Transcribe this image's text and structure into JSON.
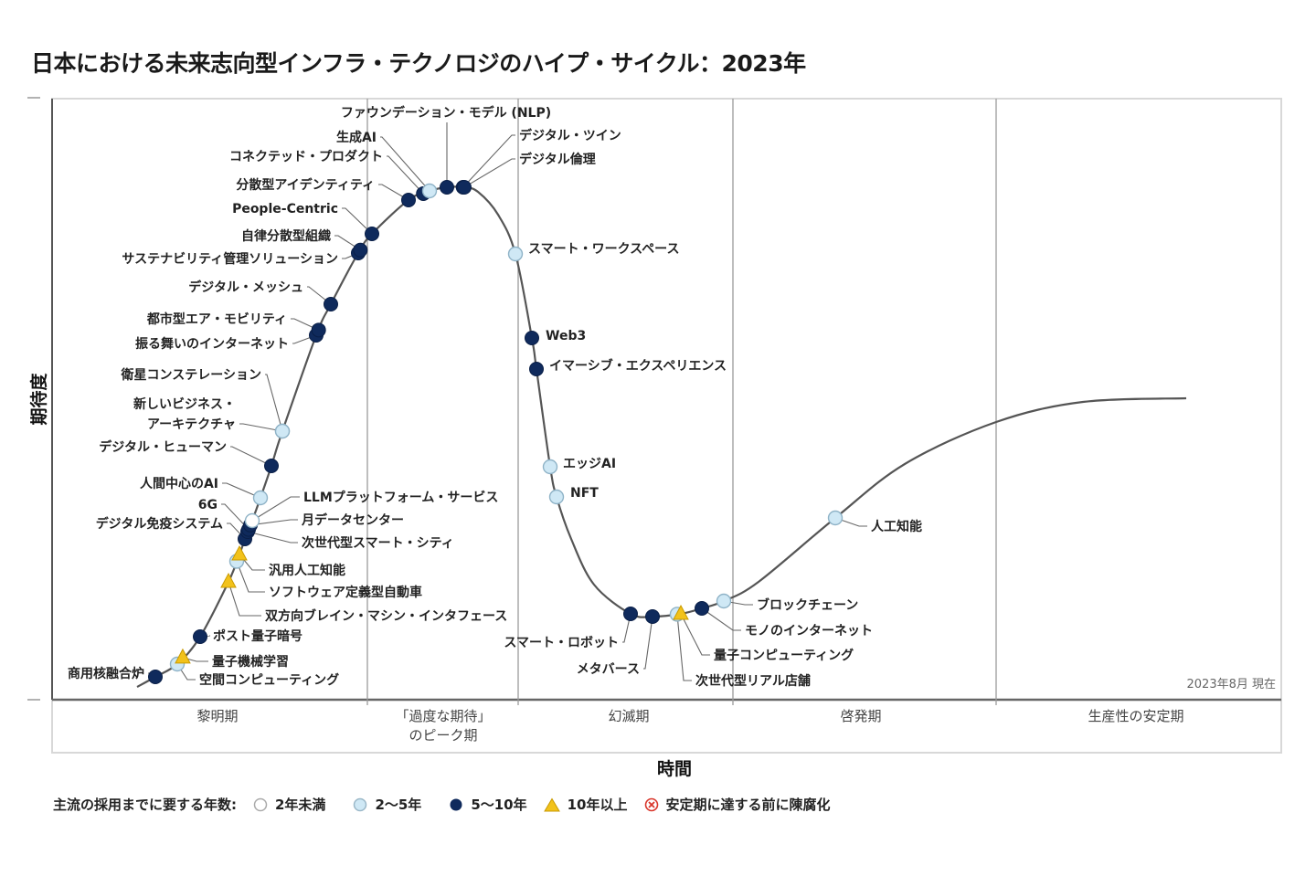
{
  "title": "日本における未来志向型インフラ・テクノロジのハイプ・サイクル：2023年",
  "chart_data": {
    "type": "scatter",
    "subtype": "hype-cycle",
    "title": "日本における未来志向型インフラ・テクノロジのハイプ・サイクル：2023年",
    "xlabel": "時間",
    "ylabel": "期待度",
    "as_of": "2023年8月 現在",
    "phases": [
      {
        "name": "黎明期",
        "lines": [
          "黎明期"
        ]
      },
      {
        "name": "「過度な期待」のピーク期",
        "lines": [
          "「過度な期待」",
          "のピーク期"
        ]
      },
      {
        "name": "幻滅期",
        "lines": [
          "幻滅期"
        ]
      },
      {
        "name": "啓発期",
        "lines": [
          "啓発期"
        ]
      },
      {
        "name": "生産性の安定期",
        "lines": [
          "生産性の安定期"
        ]
      }
    ],
    "legend": {
      "title": "主流の採用までに要する年数:",
      "entries": [
        {
          "key": "lt2",
          "label": "2年未満",
          "marker": "circle",
          "color": "#ffffff"
        },
        {
          "key": "2to5",
          "label": "2〜5年",
          "marker": "circle",
          "color": "#cfe8f5"
        },
        {
          "key": "5to10",
          "label": "5〜10年",
          "marker": "circle",
          "color": "#0f2a5c"
        },
        {
          "key": "gt10",
          "label": "10年以上",
          "marker": "triangle",
          "color": "#f2c21b"
        },
        {
          "key": "obsolete",
          "label": "安定期に達する前に陳腐化",
          "marker": "cross-circle",
          "color": "#d9362b"
        }
      ]
    },
    "technologies": [
      {
        "name": "商用核融合炉",
        "t": 3.0,
        "category": "5to10"
      },
      {
        "name": "空間コンピューティング",
        "t": 4.4,
        "category": "2to5"
      },
      {
        "name": "量子機械学習",
        "t": 4.9,
        "category": "gt10"
      },
      {
        "name": "ポスト量子暗号",
        "t": 6.5,
        "category": "5to10"
      },
      {
        "name": "双方向ブレイン・マシン・インタフェース",
        "t": 8.7,
        "category": "gt10"
      },
      {
        "name": "ソフトウェア定義型自動車",
        "t": 9.6,
        "category": "2to5"
      },
      {
        "name": "汎用人工知能",
        "t": 9.9,
        "category": "gt10"
      },
      {
        "name": "デジタル免疫システム",
        "t": 11.2,
        "category": "5to10"
      },
      {
        "name": "次世代型スマート・シティ",
        "t": 11.6,
        "category": "5to10"
      },
      {
        "name": "6G",
        "t": 11.7,
        "category": "5to10"
      },
      {
        "name": "月データセンター",
        "t": 11.9,
        "category": "5to10"
      },
      {
        "name": "LLMプラットフォーム・サービス",
        "t": 12.1,
        "category": "lt2"
      },
      {
        "name": "人間中心のAI",
        "t": 12.9,
        "category": "2to5"
      },
      {
        "name": "デジタル・ヒューマン",
        "t": 13.9,
        "category": "5to10"
      },
      {
        "name": "新しいビジネス・アーキテクチャ",
        "t": 15.0,
        "category": "2to5"
      },
      {
        "name": "衛星コンステレーション",
        "t": 15.0,
        "category": "2to5"
      },
      {
        "name": "振る舞いのインターネット",
        "t": 18.5,
        "category": "5to10"
      },
      {
        "name": "都市型エア・モビリティ",
        "t": 18.7,
        "category": "5to10"
      },
      {
        "name": "デジタル・メッシュ",
        "t": 19.7,
        "category": "5to10"
      },
      {
        "name": "サステナビリティ管理ソリューション",
        "t": 22.4,
        "category": "5to10"
      },
      {
        "name": "自律分散型組織",
        "t": 22.6,
        "category": "5to10"
      },
      {
        "name": "People-Centric",
        "t": 23.7,
        "category": "5to10"
      },
      {
        "name": "分散型アイデンティティ",
        "t": 26.9,
        "category": "5to10"
      },
      {
        "name": "コネクテッド・プロダクト",
        "t": 28.1,
        "category": "5to10"
      },
      {
        "name": "生成AI",
        "t": 28.6,
        "category": "2to5"
      },
      {
        "name": "ファウンデーション・モデル (NLP)",
        "t": 30.1,
        "category": "5to10"
      },
      {
        "name": "デジタル・ツイン",
        "t": 31.5,
        "category": "5to10"
      },
      {
        "name": "デジタル倫理",
        "t": 31.6,
        "category": "5to10"
      },
      {
        "name": "スマート・ワークスペース",
        "t": 35.9,
        "category": "2to5"
      },
      {
        "name": "Web3",
        "t": 37.2,
        "category": "5to10"
      },
      {
        "name": "イマーシブ・エクスペリエンス",
        "t": 37.6,
        "category": "5to10"
      },
      {
        "name": "エッジAI",
        "t": 38.7,
        "category": "2to5"
      },
      {
        "name": "NFT",
        "t": 39.3,
        "category": "2to5"
      },
      {
        "name": "スマート・ロボット",
        "t": 49.0,
        "category": "5to10"
      },
      {
        "name": "メタバース",
        "t": 50.9,
        "category": "5to10"
      },
      {
        "name": "次世代型リアル店舗",
        "t": 52.9,
        "category": "2to5"
      },
      {
        "name": "量子コンピューティング",
        "t": 53.2,
        "category": "gt10"
      },
      {
        "name": "モノのインターネット",
        "t": 54.9,
        "category": "5to10"
      },
      {
        "name": "ブロックチェーン",
        "t": 56.7,
        "category": "2to5"
      },
      {
        "name": "人工知能",
        "t": 66.2,
        "category": "2to5"
      }
    ]
  }
}
